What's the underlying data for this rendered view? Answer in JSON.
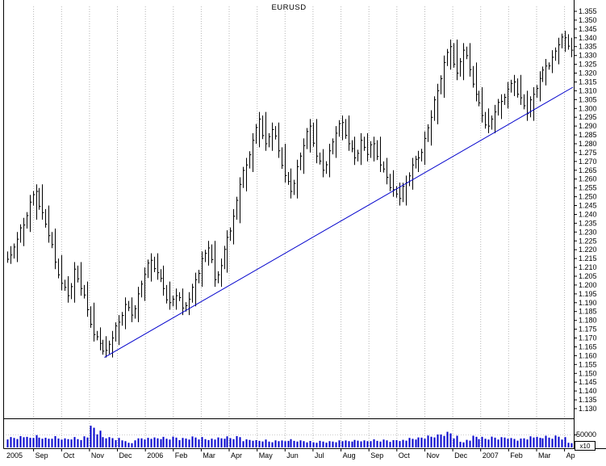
{
  "title": "EURUSD",
  "y_axis": {
    "min": 1.13,
    "max": 1.355,
    "step": 0.005,
    "tick_labels": [
      "1.355",
      "1.350",
      "1.345",
      "1.340",
      "1.335",
      "1.330",
      "1.325",
      "1.320",
      "1.315",
      "1.310",
      "1.305",
      "1.300",
      "1.295",
      "1.290",
      "1.285",
      "1.280",
      "1.275",
      "1.270",
      "1.265",
      "1.260",
      "1.255",
      "1.250",
      "1.245",
      "1.240",
      "1.235",
      "1.230",
      "1.225",
      "1.220",
      "1.215",
      "1.210",
      "1.205",
      "1.200",
      "1.195",
      "1.190",
      "1.185",
      "1.180",
      "1.175",
      "1.170",
      "1.165",
      "1.160",
      "1.155",
      "1.150",
      "1.145",
      "1.140",
      "1.135",
      "1.130"
    ]
  },
  "x_axis": {
    "tick_labels": [
      "2005",
      "Sep",
      "Oct",
      "Nov",
      "Dec",
      "2006",
      "Feb",
      "Mar",
      "Apr",
      "May",
      "Jun",
      "Jul",
      "Aug",
      "Sep",
      "Oct",
      "Nov",
      "Dec",
      "2007",
      "Feb",
      "Mar",
      "Ap"
    ]
  },
  "volume_axis": {
    "tick_label": "50000",
    "tick_value": 50000,
    "multiplier_label": "x10",
    "ylim": [
      0,
      110000
    ]
  },
  "colors": {
    "background": "#ffffff",
    "bars": "#000000",
    "trendline": "#0000cc",
    "volume": "#0000cc",
    "grid": "#b5b5b5",
    "axis_text": "#000000",
    "frame": "#000000"
  },
  "chart_data": {
    "type": "ohlc-bar",
    "symbol": "EURUSD",
    "title": "EURUSD",
    "x_span_months": 20.3,
    "price_ylim": [
      1.13,
      1.355
    ],
    "legend": "none",
    "grid": "vertical-dotted-monthly",
    "bars": {
      "interval": "weekly (approx), Aug 2005 - Apr 2007",
      "closes": [
        1.217,
        1.226,
        1.234,
        1.247,
        1.253,
        1.241,
        1.228,
        1.213,
        1.201,
        1.194,
        1.209,
        1.198,
        1.186,
        1.172,
        1.167,
        1.163,
        1.17,
        1.179,
        1.189,
        1.183,
        1.195,
        1.206,
        1.214,
        1.207,
        1.198,
        1.19,
        1.194,
        1.187,
        1.192,
        1.203,
        1.215,
        1.221,
        1.203,
        1.211,
        1.227,
        1.239,
        1.257,
        1.268,
        1.282,
        1.294,
        1.28,
        1.288,
        1.276,
        1.262,
        1.253,
        1.267,
        1.279,
        1.29,
        1.273,
        1.265,
        1.276,
        1.286,
        1.292,
        1.28,
        1.272,
        1.282,
        1.274,
        1.28,
        1.268,
        1.261,
        1.254,
        1.249,
        1.258,
        1.268,
        1.272,
        1.283,
        1.295,
        1.31,
        1.326,
        1.335,
        1.32,
        1.333,
        1.322,
        1.308,
        1.296,
        1.29,
        1.298,
        1.304,
        1.311,
        1.315,
        1.306,
        1.297,
        1.308,
        1.317,
        1.324,
        1.329,
        1.336,
        1.34,
        1.333
      ],
      "highs": [
        1.222,
        1.23,
        1.238,
        1.251,
        1.257,
        1.257,
        1.245,
        1.232,
        1.217,
        1.205,
        1.213,
        1.213,
        1.202,
        1.19,
        1.176,
        1.171,
        1.174,
        1.183,
        1.193,
        1.193,
        1.199,
        1.21,
        1.218,
        1.218,
        1.211,
        1.202,
        1.198,
        1.198,
        1.196,
        1.207,
        1.219,
        1.225,
        1.225,
        1.215,
        1.231,
        1.243,
        1.261,
        1.272,
        1.286,
        1.298,
        1.298,
        1.292,
        1.292,
        1.28,
        1.266,
        1.271,
        1.283,
        1.294,
        1.294,
        1.277,
        1.28,
        1.29,
        1.296,
        1.296,
        1.284,
        1.286,
        1.286,
        1.284,
        1.284,
        1.272,
        1.265,
        1.258,
        1.262,
        1.272,
        1.276,
        1.287,
        1.299,
        1.314,
        1.33,
        1.339,
        1.339,
        1.337,
        1.337,
        1.326,
        1.312,
        1.3,
        1.302,
        1.308,
        1.315,
        1.319,
        1.319,
        1.31,
        1.312,
        1.321,
        1.328,
        1.333,
        1.34,
        1.344,
        1.34
      ],
      "lows": [
        1.212,
        1.213,
        1.222,
        1.23,
        1.237,
        1.237,
        1.224,
        1.209,
        1.197,
        1.19,
        1.19,
        1.194,
        1.182,
        1.168,
        1.163,
        1.159,
        1.159,
        1.166,
        1.175,
        1.179,
        1.179,
        1.191,
        1.202,
        1.203,
        1.194,
        1.186,
        1.186,
        1.183,
        1.183,
        1.188,
        1.199,
        1.211,
        1.199,
        1.199,
        1.207,
        1.223,
        1.235,
        1.253,
        1.264,
        1.278,
        1.276,
        1.276,
        1.272,
        1.258,
        1.249,
        1.249,
        1.263,
        1.275,
        1.269,
        1.261,
        1.261,
        1.272,
        1.282,
        1.276,
        1.268,
        1.268,
        1.27,
        1.27,
        1.264,
        1.257,
        1.25,
        1.245,
        1.245,
        1.254,
        1.264,
        1.268,
        1.279,
        1.291,
        1.306,
        1.322,
        1.316,
        1.316,
        1.318,
        1.304,
        1.292,
        1.286,
        1.286,
        1.294,
        1.3,
        1.307,
        1.302,
        1.293,
        1.293,
        1.304,
        1.313,
        1.32,
        1.325,
        1.332,
        1.329
      ]
    },
    "volume": {
      "values": [
        40000,
        42000,
        45000,
        38000,
        44000,
        40000,
        36000,
        42000,
        38000,
        35000,
        40000,
        37000,
        44000,
        78000,
        60000,
        42000,
        38000,
        35000,
        30000,
        18000,
        35000,
        40000,
        38000,
        36000,
        38000,
        36000,
        40000,
        35000,
        38000,
        42000,
        40000,
        37000,
        35000,
        36000,
        40000,
        38000,
        42000,
        30000,
        32000,
        28000,
        30000,
        26000,
        28000,
        25000,
        30000,
        27000,
        26000,
        24000,
        22000,
        25000,
        24000,
        26000,
        28000,
        25000,
        27000,
        28000,
        26000,
        30000,
        28000,
        30000,
        28000,
        32000,
        30000,
        34000,
        36000,
        40000,
        44000,
        48000,
        55000,
        60000,
        45000,
        25000,
        30000,
        42000,
        38000,
        36000,
        40000,
        38000,
        42000,
        36000,
        34000,
        40000,
        44000,
        38000,
        42000,
        40000,
        44000,
        38000,
        20000
      ]
    },
    "trendline": {
      "from_bar": 15,
      "from_price": 1.159,
      "to_bar": 89,
      "to_price": 1.312
    }
  }
}
